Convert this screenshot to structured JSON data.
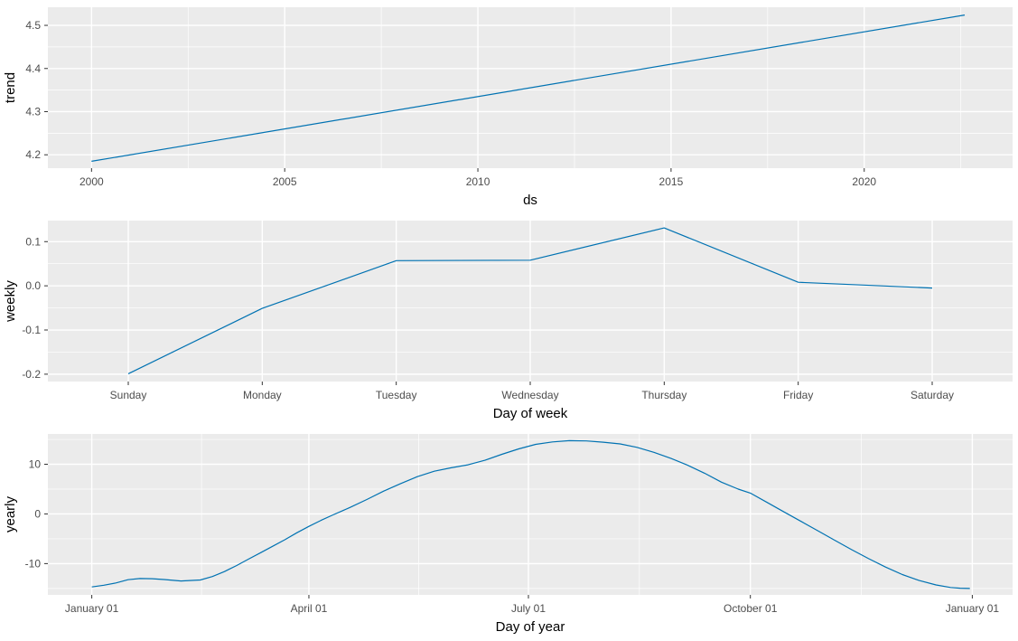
{
  "figure": {
    "name": "prophet-forecast-components",
    "background": "#ffffff",
    "panel_background": "#ebebeb",
    "grid_color": "#ffffff",
    "line_color": "#0072b2",
    "tick_color": "#333333",
    "tick_label_color": "#4d4d4d",
    "axis_title_color": "#000000"
  },
  "chart_data": [
    {
      "type": "line",
      "name": "trend",
      "title": "",
      "xlabel": "ds",
      "ylabel": "trend",
      "legend": "none",
      "grid": true,
      "xlim": [
        1998.87,
        2023.84
      ],
      "ylim": [
        4.169,
        4.542
      ],
      "x": [
        2000,
        2022.6
      ],
      "y": [
        4.185,
        4.524
      ],
      "x_ticks": [
        {
          "value": 2000,
          "label": "2000"
        },
        {
          "value": 2005,
          "label": "2005"
        },
        {
          "value": 2010,
          "label": "2010"
        },
        {
          "value": 2015,
          "label": "2015"
        },
        {
          "value": 2020,
          "label": "2020"
        }
      ],
      "y_ticks": [
        {
          "value": 4.2,
          "label": "4.2"
        },
        {
          "value": 4.3,
          "label": "4.3"
        },
        {
          "value": 4.4,
          "label": "4.4"
        },
        {
          "value": 4.5,
          "label": "4.5"
        }
      ],
      "x_minor": [
        2002.5,
        2007.5,
        2012.5,
        2017.5,
        2022.5
      ],
      "y_minor": [
        4.25,
        4.35,
        4.45
      ]
    },
    {
      "type": "line",
      "name": "weekly",
      "title": "",
      "xlabel": "Day of week",
      "ylabel": "weekly",
      "legend": "none",
      "grid": true,
      "xlim": [
        0.4,
        7.6
      ],
      "ylim": [
        -0.2166,
        0.1476
      ],
      "categories": [
        "Sunday",
        "Monday",
        "Tuesday",
        "Wednesday",
        "Thursday",
        "Friday",
        "Saturday"
      ],
      "x": [
        1,
        2,
        3,
        4,
        5,
        6,
        7
      ],
      "y": [
        -0.199,
        -0.051,
        0.057,
        0.058,
        0.131,
        0.008,
        -0.005
      ],
      "x_ticks": [
        {
          "value": 1,
          "label": "Sunday"
        },
        {
          "value": 2,
          "label": "Monday"
        },
        {
          "value": 3,
          "label": "Tuesday"
        },
        {
          "value": 4,
          "label": "Wednesday"
        },
        {
          "value": 5,
          "label": "Thursday"
        },
        {
          "value": 6,
          "label": "Friday"
        },
        {
          "value": 7,
          "label": "Saturday"
        }
      ],
      "y_ticks": [
        {
          "value": -0.2,
          "label": "-0.2"
        },
        {
          "value": -0.1,
          "label": "-0.1"
        },
        {
          "value": 0.0,
          "label": "0.0"
        },
        {
          "value": 0.1,
          "label": "0.1"
        }
      ],
      "x_minor": [],
      "y_minor": [
        -0.15,
        -0.05,
        0.05
      ]
    },
    {
      "type": "line",
      "name": "yearly",
      "title": "",
      "xlabel": "Day of year",
      "ylabel": "yearly",
      "legend": "none",
      "grid": true,
      "xlim": [
        -18.2,
        381.7
      ],
      "ylim": [
        -16.3,
        16.1
      ],
      "x": [
        0,
        5,
        10,
        15,
        20,
        25,
        30,
        37,
        45,
        50,
        55,
        60,
        65,
        70,
        75,
        80,
        85,
        90,
        95,
        100,
        107,
        114,
        121,
        128,
        135,
        142,
        149,
        156,
        163,
        170,
        177,
        184,
        191,
        198,
        205,
        212,
        219,
        226,
        233,
        240,
        247,
        254,
        261,
        268,
        273,
        280,
        287,
        294,
        301,
        308,
        315,
        322,
        329,
        336,
        343,
        350,
        356,
        360,
        364
      ],
      "y": [
        -14.7,
        -14.35,
        -13.9,
        -13.25,
        -13.0,
        -13.05,
        -13.2,
        -13.5,
        -13.3,
        -12.6,
        -11.6,
        -10.4,
        -9.1,
        -7.8,
        -6.5,
        -5.2,
        -3.8,
        -2.5,
        -1.3,
        -0.2,
        1.3,
        2.9,
        4.6,
        6.1,
        7.5,
        8.6,
        9.3,
        9.9,
        10.8,
        12.0,
        13.1,
        14.0,
        14.5,
        14.75,
        14.7,
        14.45,
        14.1,
        13.4,
        12.4,
        11.2,
        9.8,
        8.2,
        6.4,
        5.0,
        4.2,
        2.3,
        0.4,
        -1.5,
        -3.4,
        -5.3,
        -7.2,
        -9.0,
        -10.7,
        -12.2,
        -13.4,
        -14.3,
        -14.8,
        -14.95,
        -15.0
      ],
      "x_ticks": [
        {
          "value": 0,
          "label": "January 01"
        },
        {
          "value": 90,
          "label": "April 01"
        },
        {
          "value": 181,
          "label": "July 01"
        },
        {
          "value": 273,
          "label": "October 01"
        },
        {
          "value": 365,
          "label": "January 01"
        }
      ],
      "y_ticks": [
        {
          "value": -10,
          "label": "-10"
        },
        {
          "value": 0,
          "label": "0"
        },
        {
          "value": 10,
          "label": "10"
        }
      ],
      "x_minor": [
        45.5,
        135.5,
        227,
        319
      ],
      "y_minor": [
        -15,
        -5,
        5,
        15
      ]
    }
  ]
}
